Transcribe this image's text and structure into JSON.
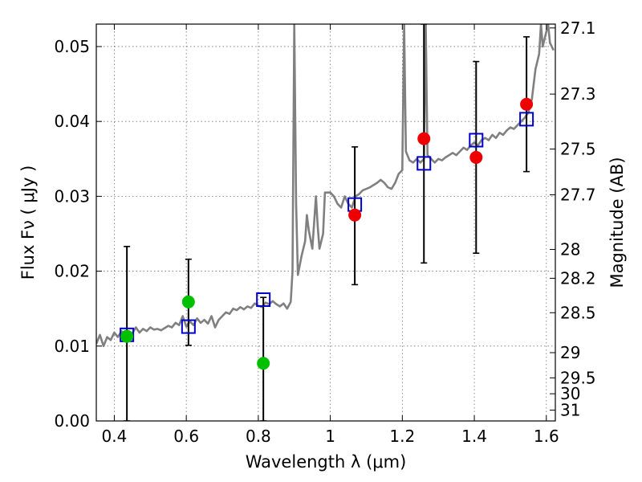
{
  "chart_data": {
    "type": "scatter",
    "xlabel": "Wavelength  λ (μm)",
    "ylabel": "Flux  Fν  ( μJy )",
    "y2label": "Magnitude (AB)",
    "xlim": [
      0.35,
      1.625
    ],
    "ylim": [
      0.0,
      0.053
    ],
    "grid": true,
    "x_ticks": [
      {
        "value": 0.4,
        "label": "0.4"
      },
      {
        "value": 0.6,
        "label": "0.6"
      },
      {
        "value": 0.8,
        "label": "0.8"
      },
      {
        "value": 1.0,
        "label": "1"
      },
      {
        "value": 1.2,
        "label": "1.2"
      },
      {
        "value": 1.4,
        "label": "1.4"
      },
      {
        "value": 1.6,
        "label": "1.6"
      }
    ],
    "y_ticks": [
      {
        "value": 0.0,
        "label": "0.00"
      },
      {
        "value": 0.01,
        "label": "0.01"
      },
      {
        "value": 0.02,
        "label": "0.02"
      },
      {
        "value": 0.03,
        "label": "0.03"
      },
      {
        "value": 0.04,
        "label": "0.04"
      },
      {
        "value": 0.05,
        "label": "0.05"
      }
    ],
    "y2_ticks": [
      {
        "label": "27.1",
        "mag": 27.1
      },
      {
        "label": "27.3",
        "mag": 27.3
      },
      {
        "label": "27.5",
        "mag": 27.5
      },
      {
        "label": "27.7",
        "mag": 27.7
      },
      {
        "label": "28",
        "mag": 28.0
      },
      {
        "label": "28.2",
        "mag": 28.2
      },
      {
        "label": "28.5",
        "mag": 28.5
      },
      {
        "label": "29",
        "mag": 29.0
      },
      {
        "label": "29.5",
        "mag": 29.5
      },
      {
        "label": "30",
        "mag": 30.0
      },
      {
        "label": "31",
        "mag": 31.0
      }
    ],
    "series": [
      {
        "kind": "line",
        "color": "#808080",
        "points": [
          [
            0.35,
            0.0103
          ],
          [
            0.36,
            0.0115
          ],
          [
            0.37,
            0.01
          ],
          [
            0.38,
            0.0112
          ],
          [
            0.39,
            0.0108
          ],
          [
            0.4,
            0.0118
          ],
          [
            0.41,
            0.0112
          ],
          [
            0.42,
            0.012
          ],
          [
            0.43,
            0.0115
          ],
          [
            0.44,
            0.012
          ],
          [
            0.45,
            0.0117
          ],
          [
            0.46,
            0.0125
          ],
          [
            0.47,
            0.0118
          ],
          [
            0.48,
            0.0123
          ],
          [
            0.49,
            0.012
          ],
          [
            0.5,
            0.0125
          ],
          [
            0.51,
            0.0122
          ],
          [
            0.52,
            0.0123
          ],
          [
            0.53,
            0.0121
          ],
          [
            0.54,
            0.0124
          ],
          [
            0.55,
            0.0127
          ],
          [
            0.56,
            0.0125
          ],
          [
            0.57,
            0.0131
          ],
          [
            0.58,
            0.0128
          ],
          [
            0.59,
            0.014
          ],
          [
            0.6,
            0.0126
          ],
          [
            0.61,
            0.0133
          ],
          [
            0.62,
            0.0128
          ],
          [
            0.63,
            0.0137
          ],
          [
            0.64,
            0.0131
          ],
          [
            0.65,
            0.0135
          ],
          [
            0.66,
            0.013
          ],
          [
            0.67,
            0.014
          ],
          [
            0.68,
            0.0125
          ],
          [
            0.69,
            0.0135
          ],
          [
            0.7,
            0.014
          ],
          [
            0.71,
            0.0145
          ],
          [
            0.72,
            0.0143
          ],
          [
            0.73,
            0.015
          ],
          [
            0.74,
            0.0148
          ],
          [
            0.75,
            0.0152
          ],
          [
            0.76,
            0.0149
          ],
          [
            0.77,
            0.0153
          ],
          [
            0.78,
            0.0151
          ],
          [
            0.79,
            0.0157
          ],
          [
            0.8,
            0.0154
          ],
          [
            0.81,
            0.0152
          ],
          [
            0.82,
            0.0158
          ],
          [
            0.83,
            0.0156
          ],
          [
            0.84,
            0.016
          ],
          [
            0.85,
            0.0156
          ],
          [
            0.86,
            0.0153
          ],
          [
            0.87,
            0.0157
          ],
          [
            0.88,
            0.015
          ],
          [
            0.89,
            0.0159
          ],
          [
            0.895,
            0.02
          ],
          [
            0.9,
            0.053
          ],
          [
            0.905,
            0.029
          ],
          [
            0.91,
            0.0195
          ],
          [
            0.92,
            0.022
          ],
          [
            0.93,
            0.024
          ],
          [
            0.935,
            0.0275
          ],
          [
            0.94,
            0.0255
          ],
          [
            0.95,
            0.023
          ],
          [
            0.96,
            0.03
          ],
          [
            0.965,
            0.026
          ],
          [
            0.97,
            0.023
          ],
          [
            0.98,
            0.025
          ],
          [
            0.985,
            0.0305
          ],
          [
            1.0,
            0.0305
          ],
          [
            1.01,
            0.03
          ],
          [
            1.02,
            0.029
          ],
          [
            1.03,
            0.0285
          ],
          [
            1.04,
            0.03
          ],
          [
            1.05,
            0.029
          ],
          [
            1.06,
            0.0285
          ],
          [
            1.07,
            0.03
          ],
          [
            1.08,
            0.0303
          ],
          [
            1.09,
            0.0308
          ],
          [
            1.1,
            0.031
          ],
          [
            1.11,
            0.0312
          ],
          [
            1.12,
            0.0315
          ],
          [
            1.13,
            0.0318
          ],
          [
            1.14,
            0.0322
          ],
          [
            1.15,
            0.0318
          ],
          [
            1.16,
            0.0312
          ],
          [
            1.17,
            0.031
          ],
          [
            1.18,
            0.0318
          ],
          [
            1.19,
            0.033
          ],
          [
            1.2,
            0.0335
          ],
          [
            1.205,
            0.053
          ],
          [
            1.21,
            0.036
          ],
          [
            1.22,
            0.0348
          ],
          [
            1.23,
            0.0345
          ],
          [
            1.24,
            0.035
          ],
          [
            1.25,
            0.0345
          ],
          [
            1.26,
            0.035
          ],
          [
            1.265,
            0.053
          ],
          [
            1.27,
            0.0355
          ],
          [
            1.28,
            0.035
          ],
          [
            1.29,
            0.0345
          ],
          [
            1.3,
            0.035
          ],
          [
            1.31,
            0.0348
          ],
          [
            1.32,
            0.0352
          ],
          [
            1.33,
            0.0355
          ],
          [
            1.34,
            0.0358
          ],
          [
            1.35,
            0.0355
          ],
          [
            1.36,
            0.036
          ],
          [
            1.37,
            0.0365
          ],
          [
            1.38,
            0.0362
          ],
          [
            1.39,
            0.0368
          ],
          [
            1.4,
            0.0372
          ],
          [
            1.41,
            0.0368
          ],
          [
            1.42,
            0.0375
          ],
          [
            1.43,
            0.0378
          ],
          [
            1.44,
            0.0375
          ],
          [
            1.45,
            0.0382
          ],
          [
            1.46,
            0.0378
          ],
          [
            1.47,
            0.0385
          ],
          [
            1.48,
            0.0382
          ],
          [
            1.49,
            0.0388
          ],
          [
            1.5,
            0.0392
          ],
          [
            1.51,
            0.039
          ],
          [
            1.52,
            0.0395
          ],
          [
            1.53,
            0.04
          ],
          [
            1.54,
            0.0405
          ],
          [
            1.55,
            0.0412
          ],
          [
            1.56,
            0.043
          ],
          [
            1.57,
            0.047
          ],
          [
            1.58,
            0.049
          ],
          [
            1.585,
            0.053
          ],
          [
            1.59,
            0.05
          ],
          [
            1.6,
            0.052
          ],
          [
            1.605,
            0.053
          ],
          [
            1.61,
            0.0505
          ],
          [
            1.62,
            0.0495
          ]
        ]
      },
      {
        "kind": "errorbar",
        "color": "#000000",
        "points": [
          {
            "x": 0.435,
            "low": 0.0,
            "high": 0.0233
          },
          {
            "x": 0.606,
            "low": 0.0101,
            "high": 0.0216
          },
          {
            "x": 0.814,
            "low": 0.0,
            "high": 0.0165
          },
          {
            "x": 1.068,
            "low": 0.0182,
            "high": 0.0366
          },
          {
            "x": 1.26,
            "low": 0.0211,
            "high": 0.053
          },
          {
            "x": 1.405,
            "low": 0.0224,
            "high": 0.048
          },
          {
            "x": 1.545,
            "low": 0.0333,
            "high": 0.0513
          }
        ]
      },
      {
        "kind": "square",
        "color": "#0000cc",
        "points": [
          [
            0.435,
            0.0115
          ],
          [
            0.606,
            0.0126
          ],
          [
            0.814,
            0.0162
          ],
          [
            1.068,
            0.0289
          ],
          [
            1.26,
            0.0344
          ],
          [
            1.405,
            0.0375
          ],
          [
            1.545,
            0.0403
          ]
        ]
      },
      {
        "kind": "circle",
        "color": "#00c000",
        "points": [
          [
            0.435,
            0.0113
          ],
          [
            0.606,
            0.0159
          ],
          [
            0.814,
            0.0077
          ]
        ]
      },
      {
        "kind": "circle",
        "color": "#ee0000",
        "points": [
          [
            1.068,
            0.0275
          ],
          [
            1.26,
            0.0377
          ],
          [
            1.405,
            0.0352
          ],
          [
            1.545,
            0.0423
          ]
        ]
      }
    ]
  }
}
